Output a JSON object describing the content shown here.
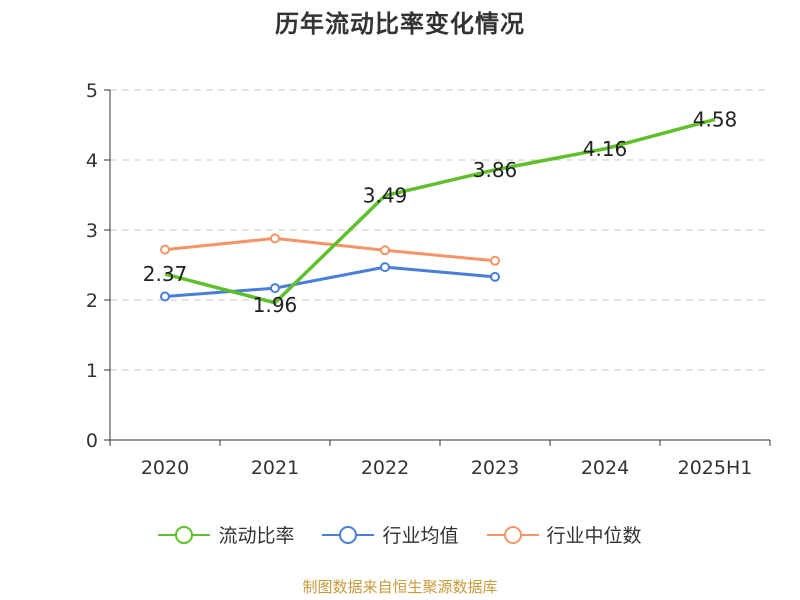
{
  "chart_data": {
    "type": "line",
    "title": "历年流动比率变化情况",
    "categories": [
      "2020",
      "2021",
      "2022",
      "2023",
      "2024",
      "2025H1"
    ],
    "y_ticks": [
      "0",
      "1",
      "2",
      "3",
      "4",
      "5"
    ],
    "ylim": [
      0,
      5
    ],
    "grid": true,
    "legend_position": "bottom",
    "series": [
      {
        "name": "流动比率",
        "color": "#5fc02c",
        "values": [
          2.37,
          1.96,
          3.49,
          3.86,
          4.16,
          4.58
        ],
        "labels": [
          "2.37",
          "1.96",
          "3.49",
          "3.86",
          "4.16",
          "4.58"
        ],
        "show_labels": true,
        "show_markers": false
      },
      {
        "name": "行业均值",
        "color": "#4a7fd9",
        "values": [
          2.05,
          2.17,
          2.47,
          2.33,
          null,
          null
        ],
        "show_labels": false,
        "show_markers": true
      },
      {
        "name": "行业中位数",
        "color": "#f59466",
        "values": [
          2.72,
          2.88,
          2.71,
          2.56,
          null,
          null
        ],
        "show_labels": false,
        "show_markers": true
      }
    ]
  },
  "footer": {
    "source": "制图数据来自恒生聚源数据库"
  }
}
